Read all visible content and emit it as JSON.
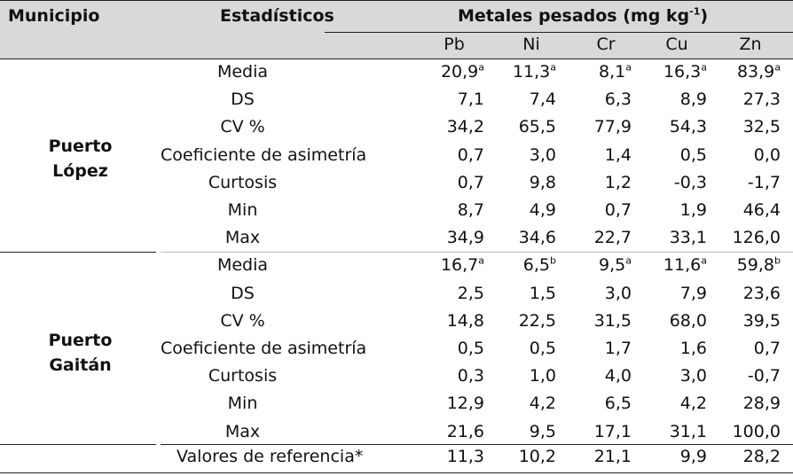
{
  "header": {
    "municipio": "Municipio",
    "estadisticos": "Estadísticos",
    "metales_prefix": "Metales pesados (mg kg",
    "metales_exp": "-1",
    "metales_suffix": ")",
    "columns": [
      "Pb",
      "Ni",
      "Cr",
      "Cu",
      "Zn"
    ]
  },
  "groups": [
    {
      "municipio_line1": "Puerto",
      "municipio_line2": "López",
      "rows": [
        {
          "stat": "Media",
          "values": [
            "20,9",
            "11,3",
            "8,1",
            "16,3",
            "83,9"
          ],
          "sups": [
            "a",
            "a",
            "a",
            "a",
            "a"
          ]
        },
        {
          "stat": "DS",
          "values": [
            "7,1",
            "7,4",
            "6,3",
            "8,9",
            "27,3"
          ]
        },
        {
          "stat": "CV %",
          "values": [
            "34,2",
            "65,5",
            "77,9",
            "54,3",
            "32,5"
          ]
        },
        {
          "stat": "Coeficiente de asimetría",
          "values": [
            "0,7",
            "3,0",
            "1,4",
            "0,5",
            "0,0"
          ]
        },
        {
          "stat": "Curtosis",
          "values": [
            "0,7",
            "9,8",
            "1,2",
            "-0,3",
            "-1,7"
          ]
        },
        {
          "stat": "Min",
          "values": [
            "8,7",
            "4,9",
            "0,7",
            "1,9",
            "46,4"
          ]
        },
        {
          "stat": "Max",
          "values": [
            "34,9",
            "34,6",
            "22,7",
            "33,1",
            "126,0"
          ]
        }
      ]
    },
    {
      "municipio_line1": "Puerto",
      "municipio_line2": "Gaitán",
      "rows": [
        {
          "stat": "Media",
          "values": [
            "16,7",
            "6,5",
            "9,5",
            "11,6",
            "59,8"
          ],
          "sups": [
            "a",
            "b",
            "a",
            "a",
            "b"
          ]
        },
        {
          "stat": "DS",
          "values": [
            "2,5",
            "1,5",
            "3,0",
            "7,9",
            "23,6"
          ]
        },
        {
          "stat": "CV %",
          "values": [
            "14,8",
            "22,5",
            "31,5",
            "68,0",
            "39,5"
          ]
        },
        {
          "stat": "Coeficiente de asimetría",
          "values": [
            "0,5",
            "0,5",
            "1,7",
            "1,6",
            "0,7"
          ]
        },
        {
          "stat": "Curtosis",
          "values": [
            "0,3",
            "1,0",
            "4,0",
            "3,0",
            "-0,7"
          ]
        },
        {
          "stat": "Min",
          "values": [
            "12,9",
            "4,2",
            "6,5",
            "4,2",
            "28,9"
          ]
        },
        {
          "stat": "Max",
          "values": [
            "21,6",
            "9,5",
            "17,1",
            "31,1",
            "100,0"
          ]
        }
      ]
    }
  ],
  "reference": {
    "label": "Valores de referencia*",
    "values": [
      "11,3",
      "10,2",
      "21,1",
      "9,9",
      "28,2"
    ]
  }
}
